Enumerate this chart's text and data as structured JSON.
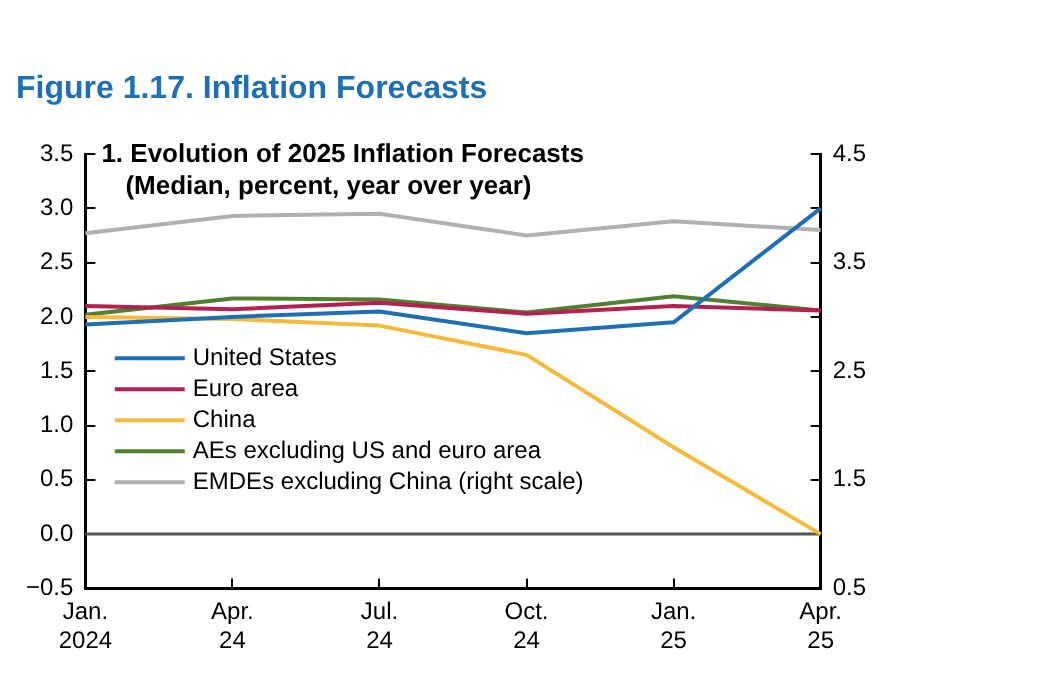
{
  "chart_data": {
    "type": "line",
    "title": "Figure 1.17.  Inflation Forecasts",
    "subtitle": "1. Evolution of 2025 Inflation Forecasts",
    "annotations": [
      "(Median, percent, year over year)"
    ],
    "categories": [
      "Jan.\n2024",
      "Apr.\n24",
      "Jul.\n24",
      "Oct.\n24",
      "Jan.\n25",
      "Apr.\n25"
    ],
    "series": [
      {
        "name": "United States",
        "color": "#1f6fb5",
        "values": [
          1.93,
          2.0,
          2.05,
          1.85,
          1.95,
          3.0
        ]
      },
      {
        "name": "Euro area",
        "color": "#b5204f",
        "values": [
          2.1,
          2.07,
          2.13,
          2.03,
          2.1,
          2.06
        ]
      },
      {
        "name": "China",
        "color": "#f5b93b",
        "values": [
          2.0,
          1.98,
          1.92,
          1.65,
          0.8,
          0.0
        ]
      },
      {
        "name": "AEs excluding US and euro area",
        "color": "#4f7f2f",
        "values": [
          2.02,
          2.17,
          2.16,
          2.04,
          2.19,
          2.06
        ]
      },
      {
        "name": "EMDEs excluding China (right scale)",
        "color": "#b0b0b0",
        "axis": "y2",
        "values": [
          3.77,
          3.93,
          3.95,
          3.75,
          3.88,
          3.8
        ]
      }
    ],
    "ylim": [
      -0.5,
      3.5
    ],
    "yticks": [
      {
        "value": -0.5,
        "label": "−0.5"
      },
      {
        "value": 0,
        "label": "0.0"
      },
      0.5,
      {
        "value": 1,
        "label": "1.0"
      },
      1.5,
      {
        "value": 2,
        "label": "2.0"
      },
      2.5,
      {
        "value": 3,
        "label": "3.0"
      },
      3.5
    ],
    "y2lim": [
      0.5,
      4.5
    ],
    "y2ticks": [
      0.5,
      {
        "value": 1,
        "label": null
      },
      1.5,
      {
        "value": 2,
        "label": null
      },
      2.5,
      {
        "value": 3,
        "label": null
      },
      3.5,
      {
        "value": 4,
        "label": null
      },
      4.5
    ],
    "ref_lines": [
      {
        "axis": "y",
        "value": 0,
        "color": "#555555"
      }
    ],
    "legend": "left",
    "grid": false,
    "marker": "none",
    "line_style": "solid"
  }
}
